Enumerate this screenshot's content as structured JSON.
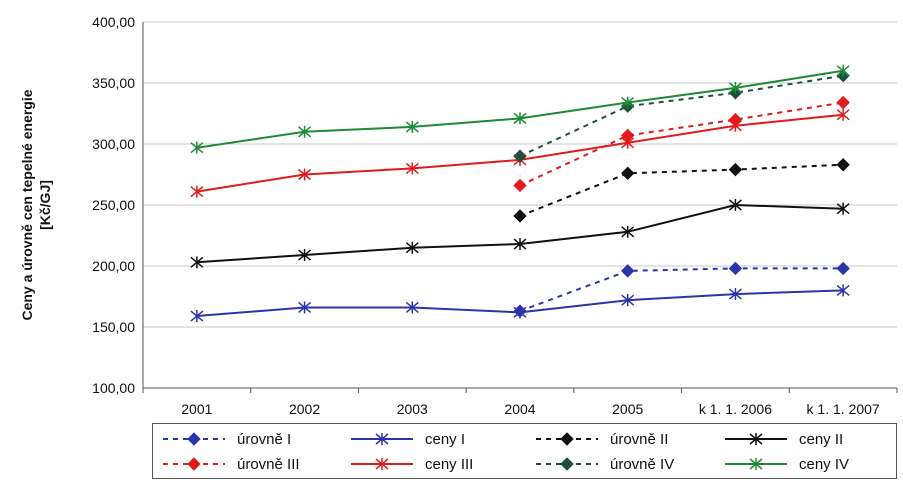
{
  "chart_data": {
    "type": "line",
    "title": "",
    "ylabel_lines": [
      "Ceny a úrovně cen tepelné energie",
      "[Kč/GJ]"
    ],
    "xlabel": "",
    "categories": [
      "2001",
      "2002",
      "2003",
      "2004",
      "2005",
      "k 1. 1. 2006",
      "k 1. 1. 2007"
    ],
    "ylim": [
      100,
      400
    ],
    "yticks": [
      "100,00",
      "150,00",
      "200,00",
      "250,00",
      "300,00",
      "350,00",
      "400,00"
    ],
    "yticks_values": [
      100,
      150,
      200,
      250,
      300,
      350,
      400
    ],
    "grid": "horizontal",
    "legend_position": "bottom",
    "series": [
      {
        "name": "úrovně I",
        "color": "#2a35a8",
        "style": "dashed",
        "marker": "diamond",
        "values": [
          null,
          null,
          null,
          163,
          196,
          198,
          198
        ]
      },
      {
        "name": "ceny I",
        "color": "#2a35a8",
        "style": "solid",
        "marker": "star",
        "values": [
          159,
          166,
          166,
          162,
          172,
          177,
          180
        ]
      },
      {
        "name": "úrovně II",
        "color": "#111111",
        "style": "dashed",
        "marker": "diamond",
        "values": [
          null,
          null,
          null,
          241,
          276,
          279,
          283
        ]
      },
      {
        "name": "ceny II",
        "color": "#111111",
        "style": "solid",
        "marker": "star",
        "values": [
          203,
          209,
          215,
          218,
          228,
          250,
          247
        ]
      },
      {
        "name": "úrovně III",
        "color": "#e11b1b",
        "style": "dashed",
        "marker": "diamond",
        "values": [
          null,
          null,
          null,
          266,
          307,
          320,
          334
        ]
      },
      {
        "name": "ceny III",
        "color": "#e11b1b",
        "style": "solid",
        "marker": "star",
        "values": [
          261,
          275,
          280,
          287,
          301,
          315,
          324
        ]
      },
      {
        "name": "úrovně IV",
        "color": "#1f4f3a",
        "style": "dashed",
        "marker": "diamond",
        "values": [
          null,
          null,
          null,
          290,
          331,
          342,
          356
        ]
      },
      {
        "name": "ceny IV",
        "color": "#1e8a36",
        "style": "solid",
        "marker": "star",
        "values": [
          297,
          310,
          314,
          321,
          334,
          346,
          360
        ]
      }
    ]
  }
}
